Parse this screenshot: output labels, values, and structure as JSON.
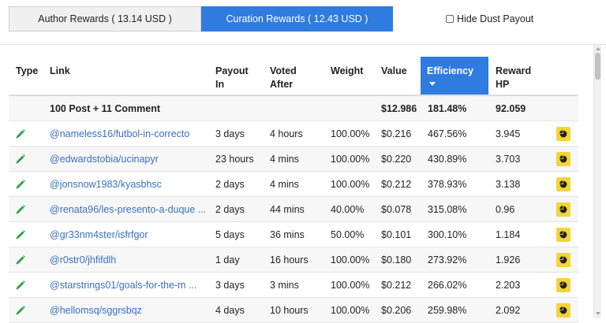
{
  "tabs": {
    "author": "Author Rewards ( 13.14 USD )",
    "curation": "Curation Rewards ( 12.43 USD )"
  },
  "dust": {
    "label": "Hide Dust Payout",
    "checked": false
  },
  "columns": {
    "type": "Type",
    "link": "Link",
    "payout_1": "Payout",
    "payout_2": "In",
    "voted_1": "Voted",
    "voted_2": "After",
    "weight": "Weight",
    "value": "Value",
    "efficiency": "Efficiency",
    "reward_1": "Reward",
    "reward_2": "HP"
  },
  "summary": {
    "label": "100 Post + 11 Comment",
    "value": "$12.986",
    "efficiency": "181.48%",
    "reward": "92.059"
  },
  "rows": [
    {
      "link": "@nameless16/futbol-in-correcto",
      "payout": "3 days",
      "voted": "4 hours",
      "weight": "100.00%",
      "value": "$0.216",
      "efficiency": "467.56%",
      "reward": "3.945"
    },
    {
      "link": "@edwardstobia/ucinapyr",
      "payout": "23 hours",
      "voted": "4 mins",
      "weight": "100.00%",
      "value": "$0.220",
      "efficiency": "430.89%",
      "reward": "3.703"
    },
    {
      "link": "@jonsnow1983/kyasbhsc",
      "payout": "2 days",
      "voted": "4 mins",
      "weight": "100.00%",
      "value": "$0.212",
      "efficiency": "378.93%",
      "reward": "3.138"
    },
    {
      "link": "@renata96/les-presento-a-duque ...",
      "payout": "2 days",
      "voted": "44 mins",
      "weight": "40.00%",
      "value": "$0.078",
      "efficiency": "315.08%",
      "reward": "0.96"
    },
    {
      "link": "@gr33nm4ster/isfrfgor",
      "payout": "5 days",
      "voted": "36 mins",
      "weight": "50.00%",
      "value": "$0.101",
      "efficiency": "300.10%",
      "reward": "1.184"
    },
    {
      "link": "@r0str0/jhfifdlh",
      "payout": "1 day",
      "voted": "16 hours",
      "weight": "100.00%",
      "value": "$0.180",
      "efficiency": "273.92%",
      "reward": "1.926"
    },
    {
      "link": "@starstrings01/goals-for-the-m ...",
      "payout": "3 days",
      "voted": "3 mins",
      "weight": "100.00%",
      "value": "$0.212",
      "efficiency": "266.02%",
      "reward": "2.203"
    },
    {
      "link": "@hellomsq/sggrsbqz",
      "payout": "4 days",
      "voted": "10 hours",
      "weight": "100.00%",
      "value": "$0.206",
      "efficiency": "259.98%",
      "reward": "2.092"
    }
  ],
  "colors": {
    "accent": "#2f7be0",
    "link": "#3b6fc0",
    "pencil": "#2aa14a",
    "pie_button": "#f3d43a"
  },
  "icons": {
    "type": "pencil-icon",
    "action": "pie-chart-icon"
  }
}
